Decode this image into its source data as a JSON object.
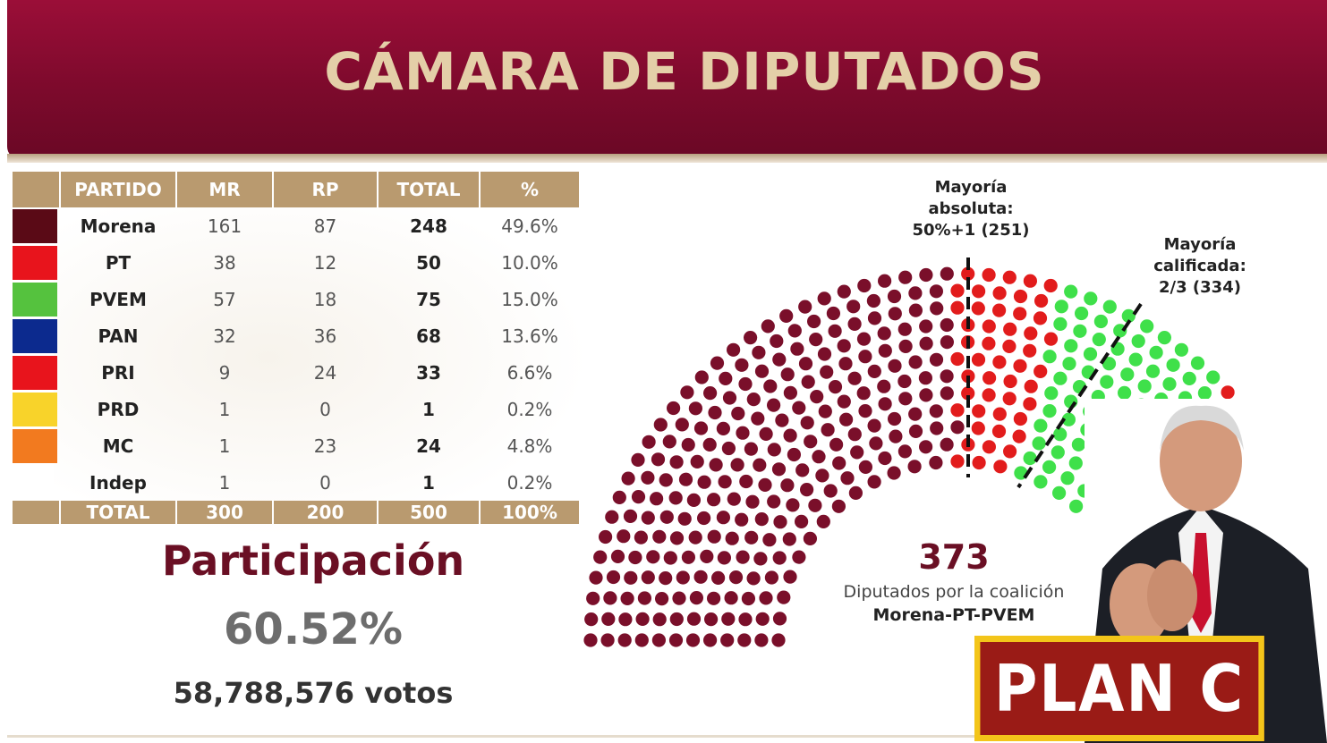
{
  "title": "CÁMARA DE DIPUTADOS",
  "table": {
    "headers": [
      "",
      "PARTIDO",
      "MR",
      "RP",
      "TOTAL",
      "%"
    ],
    "rows": [
      {
        "party": "Morena",
        "mr": "161",
        "rp": "87",
        "total": "248",
        "pct": "49.6%",
        "color": "#5a0a16"
      },
      {
        "party": "PT",
        "mr": "38",
        "rp": "12",
        "total": "50",
        "pct": "10.0%",
        "color": "#e8141c"
      },
      {
        "party": "PVEM",
        "mr": "57",
        "rp": "18",
        "total": "75",
        "pct": "15.0%",
        "color": "#55c23e"
      },
      {
        "party": "PAN",
        "mr": "32",
        "rp": "36",
        "total": "68",
        "pct": "13.6%",
        "color": "#0c2a8e"
      },
      {
        "party": "PRI",
        "mr": "9",
        "rp": "24",
        "total": "33",
        "pct": "6.6%",
        "color": "#e8141c"
      },
      {
        "party": "PRD",
        "mr": "1",
        "rp": "0",
        "total": "1",
        "pct": "0.2%",
        "color": "#f8d32a"
      },
      {
        "party": "MC",
        "mr": "1",
        "rp": "23",
        "total": "24",
        "pct": "4.8%",
        "color": "#f27a1f"
      },
      {
        "party": "Indep",
        "mr": "1",
        "rp": "0",
        "total": "1",
        "pct": "0.2%",
        "color": ""
      }
    ],
    "footer": {
      "label": "TOTAL",
      "mr": "300",
      "rp": "200",
      "total": "500",
      "pct": "100%"
    }
  },
  "participation": {
    "label": "Participación",
    "percent": "60.52%",
    "votes": "58,788,576 votos"
  },
  "chart_data": {
    "type": "parliament",
    "total_seats": 500,
    "series": [
      {
        "name": "Morena",
        "seats": 248,
        "color": "#7a0f2a"
      },
      {
        "name": "PT",
        "seats": 50,
        "color": "#e21c1c"
      },
      {
        "name": "PVEM",
        "seats": 75,
        "color": "#3fe04a"
      },
      {
        "name": "PRI",
        "seats": 33,
        "color": "#e21c1c"
      },
      {
        "name": "PAN",
        "seats": 68,
        "color": "#0c2a8e"
      }
    ],
    "annotations": [
      {
        "line1": "Mayoría",
        "line2": "absoluta:",
        "line3": "50%+1 (251)",
        "threshold": 251
      },
      {
        "line1": "Mayoría",
        "line2": "calificada:",
        "line3": "2/3 (334)",
        "threshold": 334
      }
    ],
    "coalition": {
      "seats": "373",
      "line1": "Diputados por la coalición",
      "line2": "Morena-PT-PVEM"
    }
  },
  "overlay": {
    "label": "PLAN C"
  }
}
